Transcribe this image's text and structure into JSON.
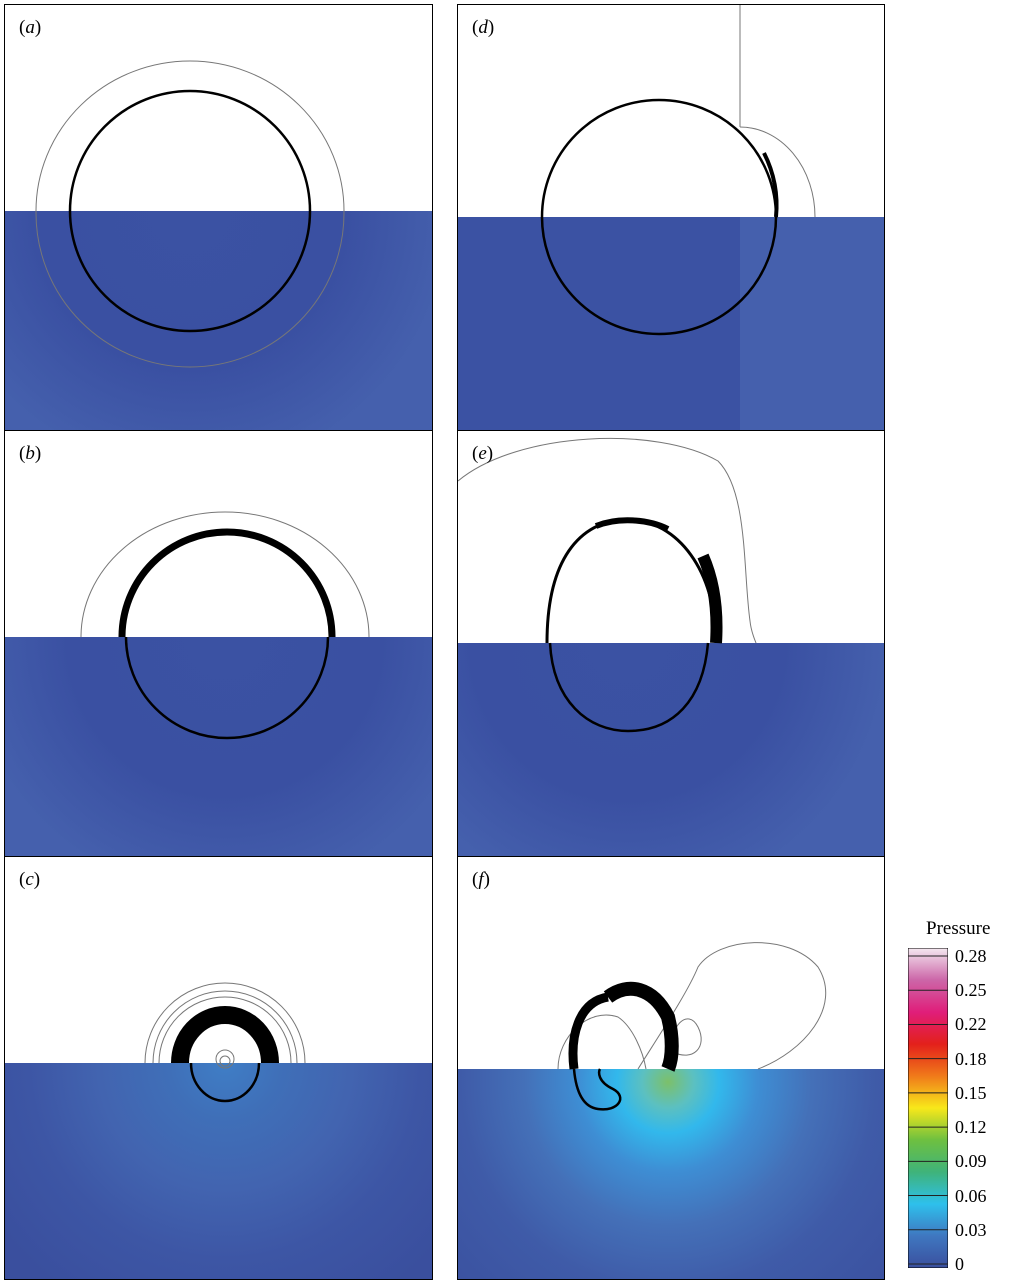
{
  "panels": [
    {
      "label": "a"
    },
    {
      "label": "b"
    },
    {
      "label": "c"
    },
    {
      "label": "d"
    },
    {
      "label": "e"
    },
    {
      "label": "f"
    }
  ],
  "colors": {
    "water": "#3b52a3",
    "water_light": "#4560ad",
    "air": "#ffffff",
    "interface": "#000000",
    "contour": "#666666"
  },
  "legend": {
    "title": "Pressure",
    "ticks": [
      "0.28",
      "0.25",
      "0.22",
      "0.18",
      "0.15",
      "0.12",
      "0.09",
      "0.06",
      "0.03",
      "0"
    ],
    "gradient_stops": [
      "#f4e8f0",
      "#cc66a8",
      "#e01e7a",
      "#e3201b",
      "#f07a1a",
      "#f8e81a",
      "#6ec040",
      "#3fb37a",
      "#2ec0ec",
      "#3f77c0",
      "#3a4f9e"
    ]
  }
}
